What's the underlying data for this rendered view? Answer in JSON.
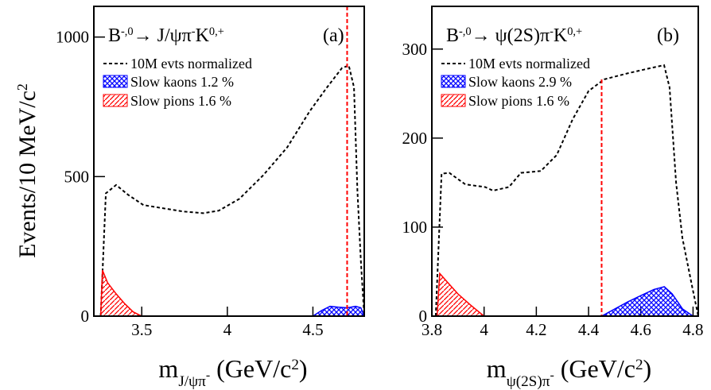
{
  "chart_data": [
    {
      "type": "area",
      "title": [
        {
          "text": "B"
        },
        {
          "text": "-,0",
          "sup": true
        },
        {
          "text": "→ J/ψπ"
        },
        {
          "text": "-",
          "sup": true
        },
        {
          "text": "K"
        },
        {
          "text": "0,+",
          "sup": true
        }
      ],
      "panel_label": "(a)",
      "xlabel": [
        {
          "text": "m"
        },
        {
          "text": "J/ψπ",
          "sub": true
        },
        {
          "text": "-",
          "subsup": true
        },
        {
          "text": " (GeV/c"
        },
        {
          "text": "2",
          "sup": true
        },
        {
          "text": ")"
        }
      ],
      "ylabel": [
        {
          "text": "Events/10 MeV/c"
        },
        {
          "text": "2",
          "sup": true
        }
      ],
      "xlim": [
        3.22,
        4.8
      ],
      "xticks": [
        3.5,
        4,
        4.5
      ],
      "ylim": [
        0,
        1110
      ],
      "yticks": [
        0,
        500,
        1000
      ],
      "vline": {
        "value": 4.7,
        "color": "#ff0000"
      },
      "series": [
        {
          "name": "10M evts normalized",
          "color": "#000000",
          "style": "dashed",
          "x": [
            3.26,
            3.29,
            3.35,
            3.42,
            3.51,
            3.65,
            3.74,
            3.86,
            3.95,
            4.07,
            4.21,
            4.35,
            4.48,
            4.58,
            4.67,
            4.71,
            4.74,
            4.76,
            4.78,
            4.8
          ],
          "values": [
            0,
            440,
            470,
            435,
            398,
            384,
            375,
            369,
            378,
            420,
            505,
            605,
            733,
            818,
            889,
            898,
            820,
            450,
            200,
            0
          ]
        },
        {
          "name": "Slow kaons 1.2 %",
          "color": "#0000ff",
          "style": "hatch-cross",
          "x": [
            4.5,
            4.55,
            4.6,
            4.65,
            4.7,
            4.75,
            4.78,
            4.8
          ],
          "values": [
            0,
            20,
            35,
            32,
            30,
            35,
            30,
            0
          ]
        },
        {
          "name": "Slow pions 1.6 %",
          "color": "#ff0000",
          "style": "hatch-diag",
          "x": [
            3.26,
            3.27,
            3.3,
            3.35,
            3.4,
            3.45,
            3.5
          ],
          "values": [
            0,
            165,
            120,
            80,
            45,
            15,
            0
          ]
        }
      ]
    },
    {
      "type": "area",
      "title": [
        {
          "text": "B"
        },
        {
          "text": "-,0",
          "sup": true
        },
        {
          "text": "→ ψ(2S)π"
        },
        {
          "text": "-",
          "sup": true
        },
        {
          "text": "K"
        },
        {
          "text": "0,+",
          "sup": true
        }
      ],
      "panel_label": "(b)",
      "xlabel": [
        {
          "text": "m"
        },
        {
          "text": "ψ(2S)π",
          "sub": true
        },
        {
          "text": "-",
          "subsup": true
        },
        {
          "text": " (GeV/c"
        },
        {
          "text": "2",
          "sup": true
        },
        {
          "text": ")"
        }
      ],
      "xlim": [
        3.8,
        4.82
      ],
      "xticks": [
        3.8,
        4,
        4.2,
        4.4,
        4.6,
        4.8
      ],
      "ylim": [
        0,
        348
      ],
      "yticks": [
        0,
        100,
        200,
        300
      ],
      "vline": {
        "value": 4.45,
        "color": "#ff0000"
      },
      "series": [
        {
          "name": "10M evts normalized",
          "color": "#000000",
          "style": "dashed",
          "x": [
            3.815,
            3.837,
            3.867,
            3.928,
            4.004,
            4.034,
            4.095,
            4.141,
            4.217,
            4.278,
            4.339,
            4.4,
            4.46,
            4.552,
            4.643,
            4.689,
            4.71,
            4.735,
            4.759,
            4.796,
            4.82
          ],
          "values": [
            0,
            160,
            161,
            148,
            145,
            141,
            145,
            161,
            163,
            181,
            221,
            253,
            266,
            273,
            279,
            282,
            257,
            150,
            88,
            34,
            0
          ]
        },
        {
          "name": "Slow kaons 2.9 %",
          "color": "#0000ff",
          "style": "hatch-cross",
          "x": [
            4.45,
            4.5,
            4.55,
            4.6,
            4.65,
            4.69,
            4.72,
            4.76,
            4.8
          ],
          "values": [
            0,
            8,
            16,
            23,
            30,
            33,
            25,
            8,
            0
          ]
        },
        {
          "name": "Slow pions 1.6 %",
          "color": "#ff0000",
          "style": "hatch-diag",
          "x": [
            3.82,
            3.83,
            3.86,
            3.9,
            3.95,
            4.0
          ],
          "values": [
            0,
            48,
            38,
            25,
            12,
            0
          ]
        }
      ]
    }
  ]
}
